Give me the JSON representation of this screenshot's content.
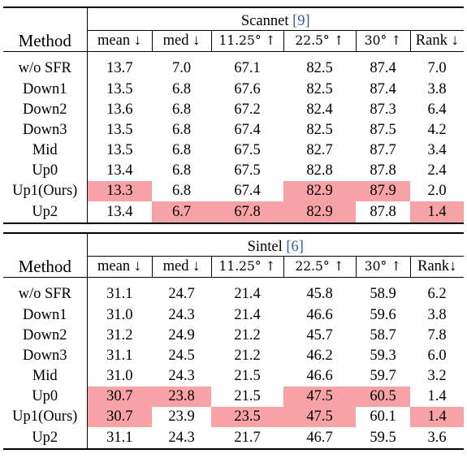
{
  "highlight_color": "#f7a2a4",
  "tables": [
    {
      "method_header": "Method",
      "dataset_name": "Scannet",
      "dataset_cite": "[9]",
      "metrics": [
        "mean ↓",
        "med ↓",
        "11.25° ↑",
        "22.5° ↑",
        "30° ↑",
        "Rank ↓"
      ],
      "rows": [
        {
          "method": "w/o SFR",
          "values": [
            "13.7",
            "7.0",
            "67.1",
            "82.5",
            "87.4",
            "7.0"
          ],
          "highlighted": [
            false,
            false,
            false,
            false,
            false,
            false
          ]
        },
        {
          "method": "Down1",
          "values": [
            "13.5",
            "6.8",
            "67.6",
            "82.5",
            "87.4",
            "3.8"
          ],
          "highlighted": [
            false,
            false,
            false,
            false,
            false,
            false
          ]
        },
        {
          "method": "Down2",
          "values": [
            "13.6",
            "6.8",
            "67.2",
            "82.4",
            "87.3",
            "6.4"
          ],
          "highlighted": [
            false,
            false,
            false,
            false,
            false,
            false
          ]
        },
        {
          "method": "Down3",
          "values": [
            "13.5",
            "6.8",
            "67.4",
            "82.5",
            "87.5",
            "4.2"
          ],
          "highlighted": [
            false,
            false,
            false,
            false,
            false,
            false
          ]
        },
        {
          "method": "Mid",
          "values": [
            "13.5",
            "6.8",
            "67.5",
            "82.7",
            "87.7",
            "3.4"
          ],
          "highlighted": [
            false,
            false,
            false,
            false,
            false,
            false
          ]
        },
        {
          "method": "Up0",
          "values": [
            "13.4",
            "6.8",
            "67.5",
            "82.8",
            "87.8",
            "2.4"
          ],
          "highlighted": [
            false,
            false,
            false,
            false,
            false,
            false
          ]
        },
        {
          "method": "Up1(Ours)",
          "values": [
            "13.3",
            "6.8",
            "67.4",
            "82.9",
            "87.9",
            "2.0"
          ],
          "highlighted": [
            true,
            false,
            false,
            true,
            true,
            false
          ]
        },
        {
          "method": "Up2",
          "values": [
            "13.4",
            "6.7",
            "67.8",
            "82.9",
            "87.8",
            "1.4"
          ],
          "highlighted": [
            false,
            true,
            true,
            true,
            false,
            true
          ]
        }
      ]
    },
    {
      "method_header": "Method",
      "dataset_name": "Sintel",
      "dataset_cite": "[6]",
      "metrics": [
        "mean ↓",
        "med ↓",
        "11.25° ↑",
        "22.5° ↑",
        "30° ↑",
        "Rank↓"
      ],
      "rows": [
        {
          "method": "w/o SFR",
          "values": [
            "31.1",
            "24.7",
            "21.4",
            "45.8",
            "58.9",
            "6.2"
          ],
          "highlighted": [
            false,
            false,
            false,
            false,
            false,
            false
          ]
        },
        {
          "method": "Down1",
          "values": [
            "31.0",
            "24.3",
            "21.4",
            "46.6",
            "59.6",
            "3.8"
          ],
          "highlighted": [
            false,
            false,
            false,
            false,
            false,
            false
          ]
        },
        {
          "method": "Down2",
          "values": [
            "31.2",
            "24.9",
            "21.2",
            "45.7",
            "58.7",
            "7.8"
          ],
          "highlighted": [
            false,
            false,
            false,
            false,
            false,
            false
          ]
        },
        {
          "method": "Down3",
          "values": [
            "31.1",
            "24.5",
            "21.2",
            "46.2",
            "59.3",
            "6.0"
          ],
          "highlighted": [
            false,
            false,
            false,
            false,
            false,
            false
          ]
        },
        {
          "method": "Mid",
          "values": [
            "31.0",
            "24.3",
            "21.5",
            "46.6",
            "59.7",
            "3.2"
          ],
          "highlighted": [
            false,
            false,
            false,
            false,
            false,
            false
          ]
        },
        {
          "method": "Up0",
          "values": [
            "30.7",
            "23.8",
            "21.5",
            "47.5",
            "60.5",
            "1.4"
          ],
          "highlighted": [
            true,
            true,
            false,
            true,
            true,
            false
          ]
        },
        {
          "method": "Up1(Ours)",
          "values": [
            "30.7",
            "23.9",
            "23.5",
            "47.5",
            "60.1",
            "1.4"
          ],
          "highlighted": [
            true,
            false,
            true,
            true,
            false,
            true
          ]
        },
        {
          "method": "Up2",
          "values": [
            "31.1",
            "24.3",
            "21.7",
            "46.7",
            "59.5",
            "3.6"
          ],
          "highlighted": [
            false,
            false,
            false,
            false,
            false,
            false
          ]
        }
      ]
    }
  ]
}
